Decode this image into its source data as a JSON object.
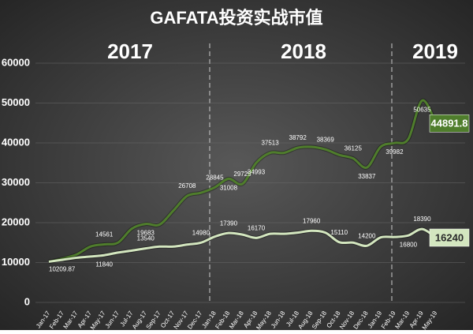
{
  "chart_data": {
    "type": "line",
    "title": "GAFATA投资实战市值",
    "annotations": [
      "2017",
      "2018",
      "2019"
    ],
    "categories": [
      "Jan-17",
      "Feb-17",
      "Mar-17",
      "Apr-17",
      "May-17",
      "Jun-17",
      "Jul-17",
      "Aug-17",
      "Sep-17",
      "Oct-17",
      "Nov-17",
      "Dec-17",
      "Jan-18",
      "Feb-18",
      "Mar-18",
      "Apr-18",
      "May-18",
      "Jun-18",
      "Jul-18",
      "Aug-18",
      "Sep-18",
      "Oct-18",
      "Nov-18",
      "Dec-18",
      "Jan-19",
      "Feb-19",
      "Mar-19",
      "Apr-19",
      "May-19"
    ],
    "series": [
      {
        "color": "#4f7d2c",
        "values": [
          10209.87,
          11000,
          12000,
          14000,
          14561,
          15000,
          18500,
          19683,
          19500,
          23000,
          26708,
          27500,
          28845,
          31008,
          29725,
          34993,
          37513,
          37500,
          38792,
          39000,
          38369,
          37000,
          36125,
          33837,
          39000,
          39982,
          41000,
          50635,
          44891.8
        ],
        "value_labels": [
          "10209.87",
          null,
          null,
          null,
          "14561",
          null,
          null,
          "19683",
          null,
          null,
          "26708",
          null,
          "28845",
          "31008",
          "29725",
          "34993",
          "37513",
          null,
          "38792",
          null,
          "38369",
          null,
          "36125",
          "33837",
          null,
          "39982",
          null,
          "50635",
          "44891.8"
        ]
      },
      {
        "color": "#d3e6bf",
        "values": [
          10209.87,
          10700,
          11200,
          11500,
          11840,
          12500,
          13000,
          13540,
          14000,
          14000,
          14500,
          14980,
          16500,
          17390,
          17000,
          16170,
          17200,
          17200,
          17500,
          17960,
          17500,
          15110,
          15000,
          14200,
          16300,
          16400,
          16800,
          18390,
          16240
        ],
        "value_labels": [
          null,
          null,
          null,
          null,
          "11840",
          null,
          null,
          "13540",
          null,
          null,
          null,
          "14980",
          null,
          "17390",
          null,
          "16170",
          null,
          null,
          null,
          "17960",
          null,
          "15110",
          null,
          "14200",
          null,
          null,
          "16800",
          "18390",
          "16240"
        ]
      }
    ],
    "ylim": [
      0,
      60000
    ],
    "yticks": [
      0,
      10000,
      20000,
      30000,
      40000,
      50000,
      60000
    ],
    "grid": true
  }
}
